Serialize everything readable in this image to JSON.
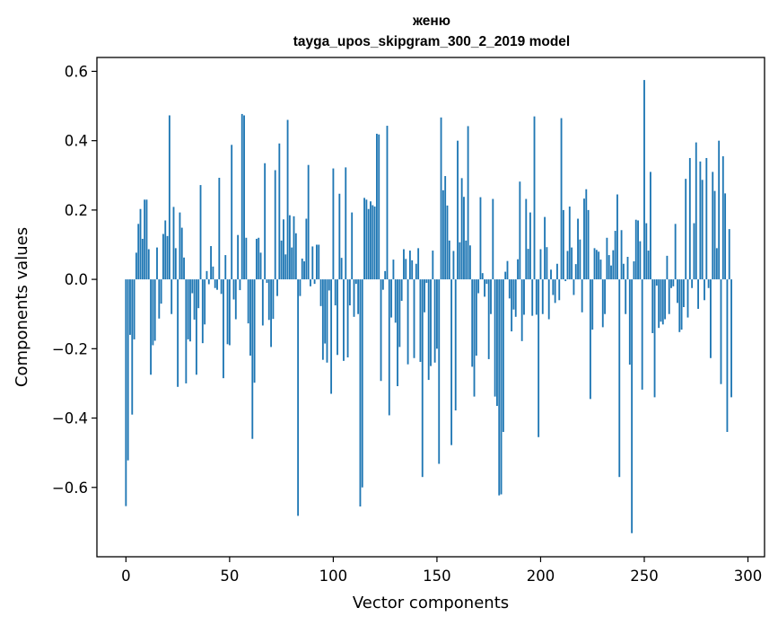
{
  "chart_data": {
    "type": "bar",
    "title": "женю",
    "subtitle": "tayga_upos_skipgram_300_2_2019 model",
    "xlabel": "Vector components",
    "ylabel": "Components values",
    "xlim": [
      -14,
      308
    ],
    "ylim": [
      -0.8,
      0.64
    ],
    "x_ticks": [
      0,
      50,
      100,
      150,
      200,
      250,
      300
    ],
    "y_ticks": [
      -0.6,
      -0.4,
      -0.2,
      0.0,
      0.2,
      0.4,
      0.6
    ],
    "x_tick_labels": [
      "0",
      "50",
      "100",
      "150",
      "200",
      "250",
      "300"
    ],
    "y_tick_labels": [
      "−0.6",
      "−0.4",
      "−0.2",
      "0.0",
      "0.2",
      "0.4",
      "0.6"
    ],
    "bar_color": "#1f77b4",
    "values": [
      -0.654,
      -0.522,
      -0.16,
      -0.39,
      -0.173,
      0.077,
      0.16,
      0.203,
      0.117,
      0.23,
      0.23,
      0.087,
      -0.275,
      -0.19,
      -0.177,
      0.092,
      -0.113,
      -0.07,
      0.131,
      0.17,
      0.125,
      0.473,
      -0.1,
      0.209,
      0.09,
      -0.31,
      0.193,
      0.149,
      0.063,
      -0.3,
      -0.173,
      -0.179,
      -0.04,
      -0.116,
      -0.275,
      -0.083,
      0.272,
      -0.184,
      -0.13,
      0.024,
      -0.014,
      0.096,
      0.037,
      -0.025,
      -0.03,
      0.293,
      -0.042,
      -0.285,
      0.07,
      -0.187,
      -0.19,
      0.388,
      -0.058,
      -0.115,
      0.128,
      -0.031,
      0.477,
      0.473,
      0.12,
      -0.127,
      -0.22,
      -0.46,
      -0.298,
      0.117,
      0.12,
      0.077,
      -0.133,
      0.335,
      -0.01,
      -0.117,
      -0.195,
      -0.114,
      0.315,
      -0.048,
      0.392,
      0.112,
      0.173,
      0.072,
      0.46,
      0.185,
      0.092,
      0.182,
      0.133,
      -0.682,
      -0.048,
      0.06,
      0.052,
      0.175,
      0.33,
      -0.02,
      0.095,
      -0.013,
      0.1,
      0.1,
      -0.077,
      -0.232,
      -0.185,
      -0.24,
      -0.032,
      -0.33,
      0.32,
      -0.075,
      -0.218,
      0.247,
      0.062,
      -0.235,
      0.323,
      -0.225,
      -0.075,
      0.193,
      -0.108,
      -0.013,
      -0.1,
      -0.655,
      -0.6,
      0.235,
      0.23,
      0.203,
      0.225,
      0.214,
      0.21,
      0.42,
      0.418,
      -0.293,
      -0.03,
      0.024,
      0.443,
      -0.392,
      -0.11,
      0.057,
      -0.125,
      -0.308,
      -0.195,
      -0.062,
      0.087,
      0.059,
      -0.245,
      0.083,
      0.055,
      -0.227,
      0.045,
      0.09,
      -0.238,
      -0.57,
      -0.095,
      -0.01,
      -0.29,
      -0.25,
      0.083,
      -0.24,
      -0.2,
      -0.532,
      0.467,
      0.257,
      0.298,
      0.213,
      0.112,
      -0.478,
      0.082,
      -0.378,
      0.4,
      0.107,
      0.292,
      0.238,
      0.112,
      0.442,
      0.098,
      -0.252,
      -0.338,
      -0.22,
      -0.04,
      0.237,
      0.018,
      -0.05,
      -0.013,
      -0.23,
      -0.1,
      0.232,
      -0.338,
      -0.365,
      -0.623,
      -0.62,
      -0.44,
      0.022,
      0.053,
      -0.055,
      -0.15,
      -0.087,
      -0.108,
      0.058,
      0.282,
      -0.178,
      -0.102,
      0.232,
      0.088,
      0.193,
      -0.105,
      0.47,
      -0.102,
      -0.455,
      0.087,
      -0.1,
      0.18,
      0.093,
      -0.115,
      0.028,
      -0.045,
      -0.068,
      0.045,
      -0.06,
      0.465,
      0.2,
      -0.005,
      0.082,
      0.21,
      0.092,
      -0.045,
      0.044,
      0.175,
      0.115,
      -0.095,
      0.233,
      0.26,
      0.2,
      -0.345,
      -0.145,
      0.09,
      0.085,
      0.08,
      0.057,
      -0.138,
      -0.1,
      0.12,
      0.07,
      0.04,
      0.084,
      0.14,
      0.245,
      -0.57,
      0.142,
      0.045,
      -0.1,
      0.065,
      -0.246,
      -0.732,
      0.052,
      0.172,
      0.17,
      0.11,
      -0.318,
      0.575,
      0.162,
      0.083,
      0.31,
      -0.155,
      -0.34,
      -0.018,
      -0.14,
      -0.122,
      -0.13,
      -0.115,
      0.068,
      -0.1,
      -0.025,
      -0.02,
      0.16,
      -0.068,
      -0.152,
      -0.145,
      -0.08,
      0.29,
      -0.11,
      0.35,
      -0.025,
      0.162,
      0.395,
      -0.085,
      0.34,
      0.287,
      -0.06,
      0.35,
      -0.025,
      -0.227,
      0.31,
      0.255,
      0.09,
      0.4,
      -0.302,
      0.355,
      0.248,
      -0.44,
      0.145,
      -0.34
    ]
  }
}
